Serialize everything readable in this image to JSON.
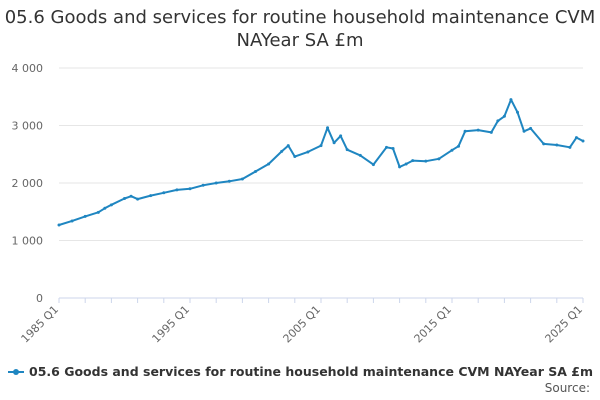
{
  "chart_data": {
    "type": "line",
    "title": "05.6 Goods and services for routine household maintenance CVM NAYear SA £m",
    "xlabel": "",
    "ylabel": "",
    "ylim": [
      0,
      4000
    ],
    "xlim": [
      1985,
      2025
    ],
    "yticks": [
      0,
      1000,
      2000,
      3000,
      4000
    ],
    "ytick_labels": [
      "0",
      "1 000",
      "2 000",
      "3 000",
      "4 000"
    ],
    "xticks": [
      1985,
      1995,
      2005,
      2015,
      2025
    ],
    "xtick_labels": [
      "1985 Q1",
      "1995 Q1",
      "2005 Q1",
      "2015 Q1",
      "2025 Q1"
    ],
    "grid": true,
    "series": [
      {
        "name": "05.6 Goods and services for routine household maintenance CVM NAYear SA £m",
        "color": "#1f86c1",
        "x": [
          1985,
          1986,
          1987,
          1988,
          1988.5,
          1989,
          1990,
          1990.5,
          1991,
          1992,
          1993,
          1994,
          1995,
          1996,
          1997,
          1998,
          1999,
          2000,
          2001,
          2002,
          2002.5,
          2003,
          2004,
          2005,
          2005.5,
          2006,
          2006.5,
          2007,
          2008,
          2009,
          2010,
          2010.5,
          2011,
          2011.5,
          2012,
          2013,
          2014,
          2015,
          2015.5,
          2016,
          2017,
          2018,
          2018.5,
          2019,
          2019.5,
          2020,
          2020.5,
          2021,
          2022,
          2023,
          2024,
          2024.5,
          2025
        ],
        "values": [
          1270,
          1340,
          1420,
          1490,
          1560,
          1620,
          1730,
          1770,
          1720,
          1780,
          1830,
          1880,
          1900,
          1960,
          2000,
          2030,
          2070,
          2200,
          2330,
          2550,
          2650,
          2460,
          2540,
          2650,
          2960,
          2700,
          2820,
          2580,
          2480,
          2320,
          2620,
          2600,
          2280,
          2330,
          2390,
          2380,
          2420,
          2570,
          2640,
          2900,
          2920,
          2880,
          3080,
          3160,
          3450,
          3230,
          2900,
          2950,
          2680,
          2660,
          2620,
          2790,
          2730
        ]
      }
    ]
  },
  "legend": {
    "label": "05.6 Goods and services for routine household maintenance CVM NAYear SA £m"
  },
  "source": {
    "label": "Source:"
  }
}
